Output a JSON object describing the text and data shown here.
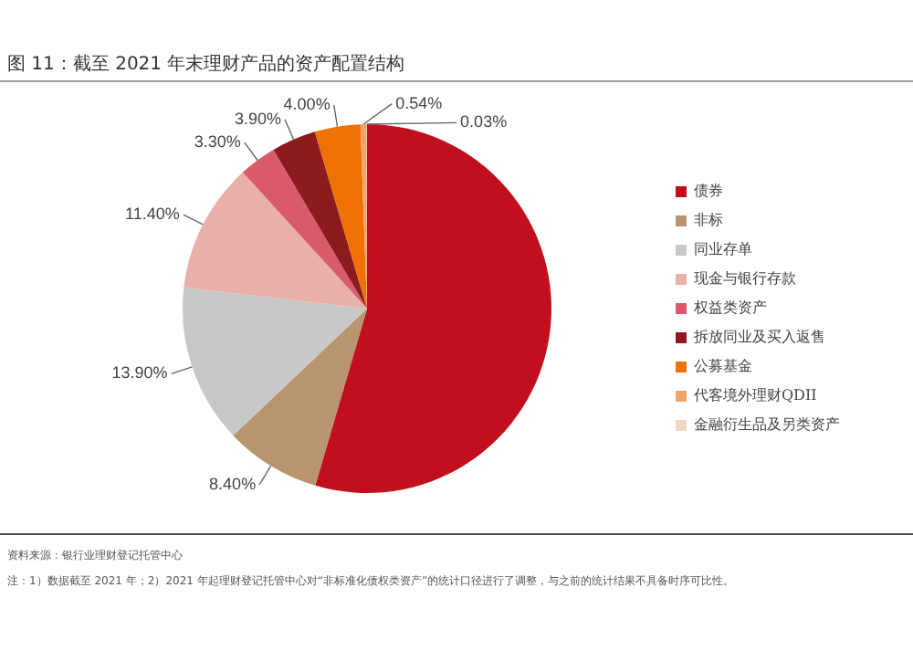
{
  "chart_data": {
    "type": "pie",
    "title": "图 11：截至 2021 年末理财产品的资产配置结构",
    "categories": [
      "债券",
      "非标",
      "同业存单",
      "现金与银行存款",
      "权益类资产",
      "拆放同业及买入返售",
      "公募基金",
      "代客境外理财QDII",
      "金融衍生品及另类资产"
    ],
    "values": [
      54.53,
      8.4,
      13.9,
      11.4,
      3.3,
      3.9,
      4.0,
      0.54,
      0.03
    ],
    "colors": [
      "#c0101e",
      "#b8956e",
      "#c8c8c8",
      "#e8b0a8",
      "#d95b6b",
      "#8c1a1e",
      "#ee7203",
      "#f2a46e",
      "#f0d8c0"
    ],
    "value_labels": [
      null,
      "8.40%",
      "13.90%",
      "11.40%",
      "3.30%",
      "3.90%",
      "4.00%",
      "0.54%",
      "0.03%"
    ],
    "legend": "right",
    "annotations": [
      "资料来源：银行业理财登记托管中心",
      "注：1）数据截至 2021 年；2）2021 年起理财登记托管中心对“非标准化债权类资产”的统计口径进行了调整，与之前的统计结果不具备时序可比性。"
    ]
  }
}
